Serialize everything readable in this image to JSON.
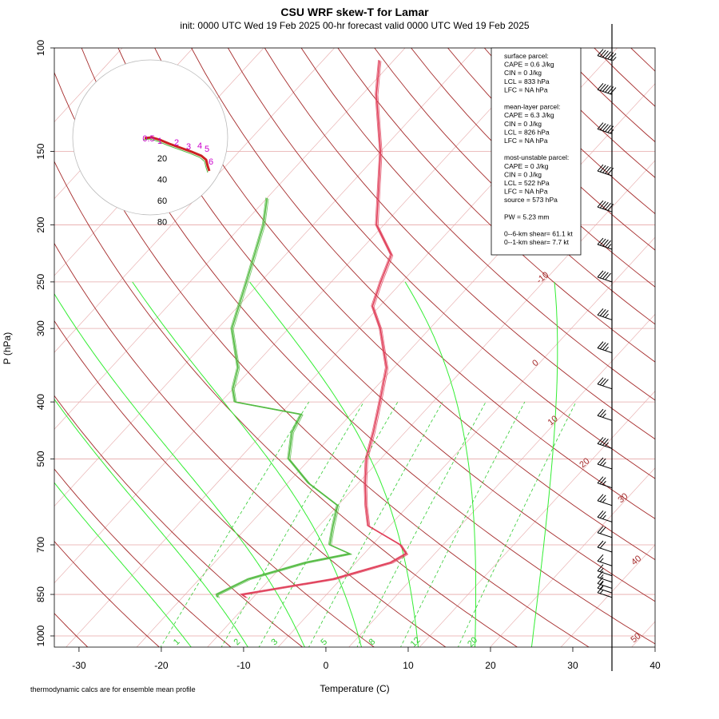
{
  "title": "CSU WRF skew-T for Lamar",
  "subtitle": "init: 0000 UTC Wed 19 Feb 2025     00-hr forecast valid 0000 UTC Wed 19 Feb 2025",
  "footnote": "thermodynamic calcs are for ensemble mean profile",
  "colors": {
    "isotherm": "#e6a8a8",
    "dry_adiabat": "#a52a2a",
    "moist_adiabat": "#33ee33",
    "mixing_ratio": "#33cc33",
    "temperature": "#e0405a",
    "dewpoint": "#55bb44",
    "hodograph_ring": "#bbbbbb",
    "hodograph_trace": "#cc2222",
    "hodograph_label": "#cc00cc"
  },
  "info_box": {
    "lines": [
      "surface parcel:",
      "CAPE = 0.6 J/kg",
      "CIN = 0 J/kg",
      "LCL = 833 hPa",
      "LFC = NA hPa",
      "",
      "mean-layer parcel:",
      "CAPE = 6.3 J/kg",
      "CIN = 0 J/kg",
      "LCL = 826 hPa",
      "LFC = NA hPa",
      "",
      "most-unstable parcel:",
      "CAPE = 0 J/kg",
      "CIN = 0 J/kg",
      "LCL = 522 hPa",
      "LFC = NA hPa",
      "source = 573 hPa",
      "",
      "PW =  5.23 mm",
      "",
      "0--6-km shear= 61.1 kt",
      "0--1-km shear= 7.7 kt"
    ]
  },
  "chart_data": {
    "type": "line",
    "xlabel": "Temperature (C)",
    "ylabel": "P (hPa)",
    "xlim": [
      -33,
      40
    ],
    "x_ticks": [
      "-30",
      "-20",
      "-10",
      "0",
      "10",
      "20",
      "30",
      "40"
    ],
    "ylim": [
      1050,
      100
    ],
    "y_ticks": [
      "100",
      "150",
      "200",
      "250",
      "300",
      "400",
      "500",
      "700",
      "850",
      "1000"
    ],
    "y_scale": "log",
    "isotherm_labels": [
      "-10",
      "0",
      "10",
      "20",
      "30",
      "40",
      "50"
    ],
    "mixing_ratio_labels": [
      "1",
      "2",
      "3",
      "5",
      "8",
      "12",
      "20"
    ],
    "hodograph_ring_labels": [
      "20",
      "40",
      "60",
      "80"
    ],
    "hodograph_points": [
      "0.5",
      "1",
      "2",
      "3",
      "4",
      "5",
      "6"
    ],
    "series": [
      {
        "name": "",
        "role": "temperature",
        "points": [
          [
            860,
            -11
          ],
          [
            850,
            -12
          ],
          [
            800,
            -1
          ],
          [
            750,
            5
          ],
          [
            725,
            6
          ],
          [
            700,
            4
          ],
          [
            650,
            -3
          ],
          [
            600,
            -6
          ],
          [
            550,
            -9
          ],
          [
            500,
            -12
          ],
          [
            450,
            -14.5
          ],
          [
            400,
            -17.5
          ],
          [
            350,
            -21
          ],
          [
            300,
            -27
          ],
          [
            275,
            -31
          ],
          [
            250,
            -33
          ],
          [
            225,
            -35
          ],
          [
            200,
            -41
          ],
          [
            150,
            -50
          ],
          [
            120,
            -58
          ],
          [
            105,
            -62
          ]
        ]
      },
      {
        "name": "",
        "role": "dewpoint",
        "points": [
          [
            860,
            -15
          ],
          [
            850,
            -15.5
          ],
          [
            800,
            -13
          ],
          [
            750,
            -7
          ],
          [
            725,
            -2
          ],
          [
            700,
            -6
          ],
          [
            650,
            -8
          ],
          [
            600,
            -10
          ],
          [
            550,
            -17
          ],
          [
            500,
            -23
          ],
          [
            450,
            -26
          ],
          [
            420,
            -27
          ],
          [
            400,
            -38
          ],
          [
            380,
            -40
          ],
          [
            350,
            -42
          ],
          [
            300,
            -48
          ],
          [
            250,
            -52
          ],
          [
            200,
            -57
          ],
          [
            180,
            -60
          ]
        ]
      }
    ],
    "wind_barbs": [
      {
        "p": 105,
        "speed_kt": 65
      },
      {
        "p": 120,
        "speed_kt": 60
      },
      {
        "p": 140,
        "speed_kt": 55
      },
      {
        "p": 165,
        "speed_kt": 50
      },
      {
        "p": 190,
        "speed_kt": 50
      },
      {
        "p": 220,
        "speed_kt": 45
      },
      {
        "p": 250,
        "speed_kt": 40
      },
      {
        "p": 290,
        "speed_kt": 35
      },
      {
        "p": 330,
        "speed_kt": 35
      },
      {
        "p": 380,
        "speed_kt": 30
      },
      {
        "p": 430,
        "speed_kt": 25
      },
      {
        "p": 480,
        "speed_kt": 35
      },
      {
        "p": 520,
        "speed_kt": 25
      },
      {
        "p": 560,
        "speed_kt": 25
      },
      {
        "p": 600,
        "speed_kt": 25
      },
      {
        "p": 640,
        "speed_kt": 25
      },
      {
        "p": 680,
        "speed_kt": 20
      },
      {
        "p": 720,
        "speed_kt": 20
      },
      {
        "p": 760,
        "speed_kt": 15
      },
      {
        "p": 790,
        "speed_kt": 15
      },
      {
        "p": 810,
        "speed_kt": 15
      },
      {
        "p": 830,
        "speed_kt": 15
      },
      {
        "p": 845,
        "speed_kt": 15
      },
      {
        "p": 860,
        "speed_kt": 15
      }
    ]
  }
}
